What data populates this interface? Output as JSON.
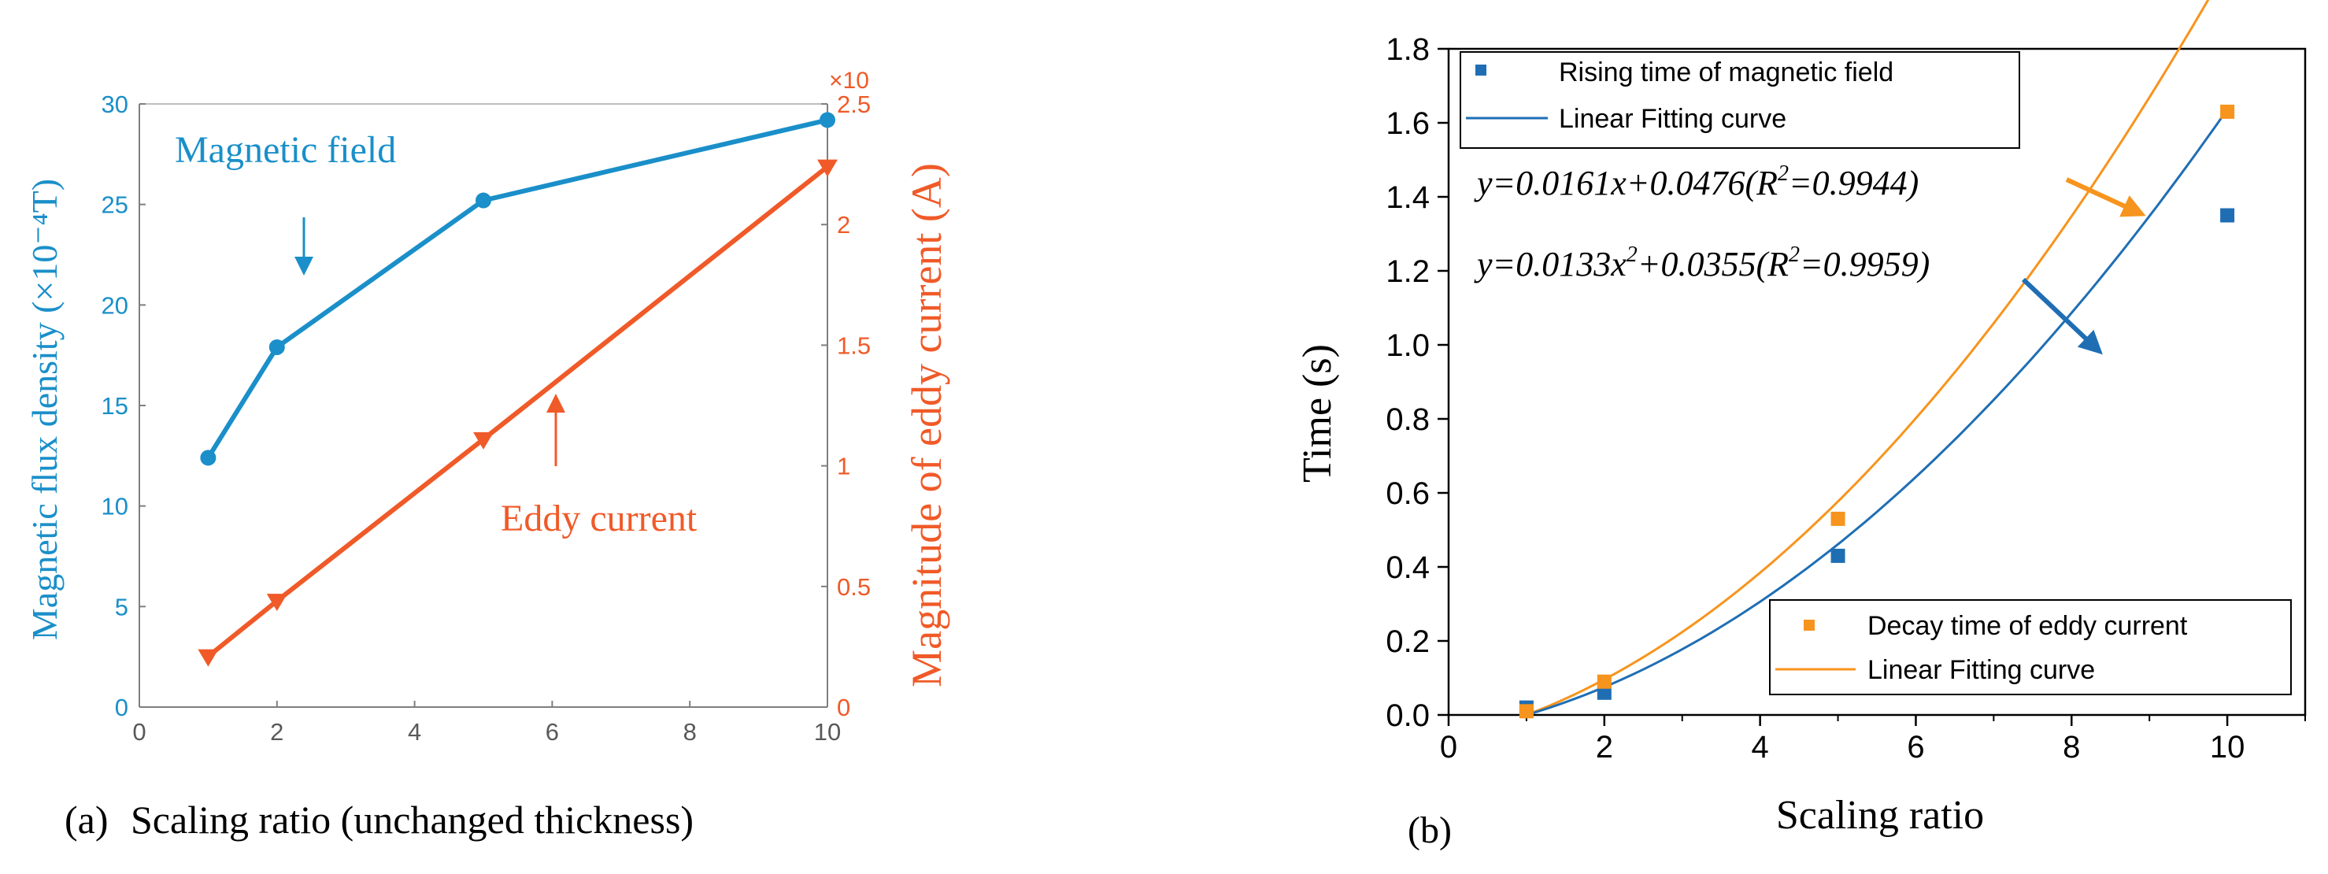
{
  "colors": {
    "blue_a": "#1a8fc9",
    "orange_a": "#f05a28",
    "blue_b": "#1f6eb4",
    "orange_b": "#f7941d",
    "axis": "#000000",
    "axis_a": "#7f7f7f"
  },
  "chart_data": [
    {
      "type": "line",
      "panel_label": "(a)",
      "xlabel": "Scaling ratio (unchanged thickness)",
      "x_ticks": [
        "0",
        "2",
        "4",
        "6",
        "8",
        "10"
      ],
      "xlim": [
        0,
        10
      ],
      "ylabel_left": "Magnetic flux density (×10⁻⁴T)",
      "y_ticks_left": [
        "0",
        "5",
        "10",
        "15",
        "20",
        "25",
        "30"
      ],
      "ylim_left": [
        0,
        30
      ],
      "ylabel_right": "Magnitude of  eddy current (A)",
      "y_ticks_right": [
        "0",
        "0.5",
        "1",
        "1.5",
        "2",
        "2.5"
      ],
      "ylim_right": [
        0,
        2.5
      ],
      "right_multiplier": "×10",
      "series": [
        {
          "name": "Magnetic field",
          "axis": "left",
          "marker": "circle",
          "x": [
            1,
            2,
            5,
            10
          ],
          "y": [
            12.4,
            17.9,
            25.2,
            29.2
          ]
        },
        {
          "name": "Eddy current",
          "axis": "right",
          "marker": "triangle-down",
          "x": [
            1,
            2,
            5,
            10
          ],
          "y": [
            0.21,
            0.44,
            1.11,
            2.24
          ]
        }
      ],
      "annotations": [
        {
          "text": "Magnetic field",
          "series": "Magnetic field"
        },
        {
          "text": "Eddy current",
          "series": "Eddy current"
        }
      ]
    },
    {
      "type": "scatter",
      "panel_label": "(b)",
      "xlabel": "Scaling  ratio",
      "ylabel": "Time (s)",
      "xlim": [
        0,
        11
      ],
      "ylim": [
        0,
        1.8
      ],
      "x_ticks": [
        "0",
        "2",
        "4",
        "6",
        "8",
        "10"
      ],
      "y_ticks": [
        "0.0",
        "0.2",
        "0.4",
        "0.6",
        "0.8",
        "1.0",
        "1.2",
        "1.4",
        "1.6",
        "1.8"
      ],
      "series": [
        {
          "name": "Rising time of magnetic field",
          "marker": "square",
          "x": [
            1,
            2,
            5,
            10
          ],
          "y": [
            0.02,
            0.06,
            0.43,
            1.35
          ],
          "fit": {
            "label": "Linear Fitting curve",
            "a": 0.0133,
            "b": 0.0355
          }
        },
        {
          "name": "Decay time of eddy current",
          "marker": "square",
          "x": [
            1,
            2,
            5,
            10
          ],
          "y": [
            0.01,
            0.09,
            0.53,
            1.63
          ],
          "fit": {
            "label": "Linear Fitting curve",
            "a": 0.0161,
            "b": 0.0476
          }
        }
      ],
      "legends": [
        {
          "position": "top-left",
          "entries": [
            "Rising time of magnetic field",
            "Linear Fitting curve"
          ]
        },
        {
          "position": "bottom-right",
          "entries": [
            "Decay time of eddy current",
            "Linear Fitting curve"
          ]
        }
      ],
      "equations": {
        "orange": {
          "pre": "y=0.0161x+0.0476(R",
          "sup": "2",
          "post": "=0.9944)"
        },
        "blue": {
          "pre": "y=0.0133x",
          "sup1": "2",
          "mid": "+0.0355(R",
          "sup2": "2",
          "post": "=0.9959)"
        }
      }
    }
  ]
}
